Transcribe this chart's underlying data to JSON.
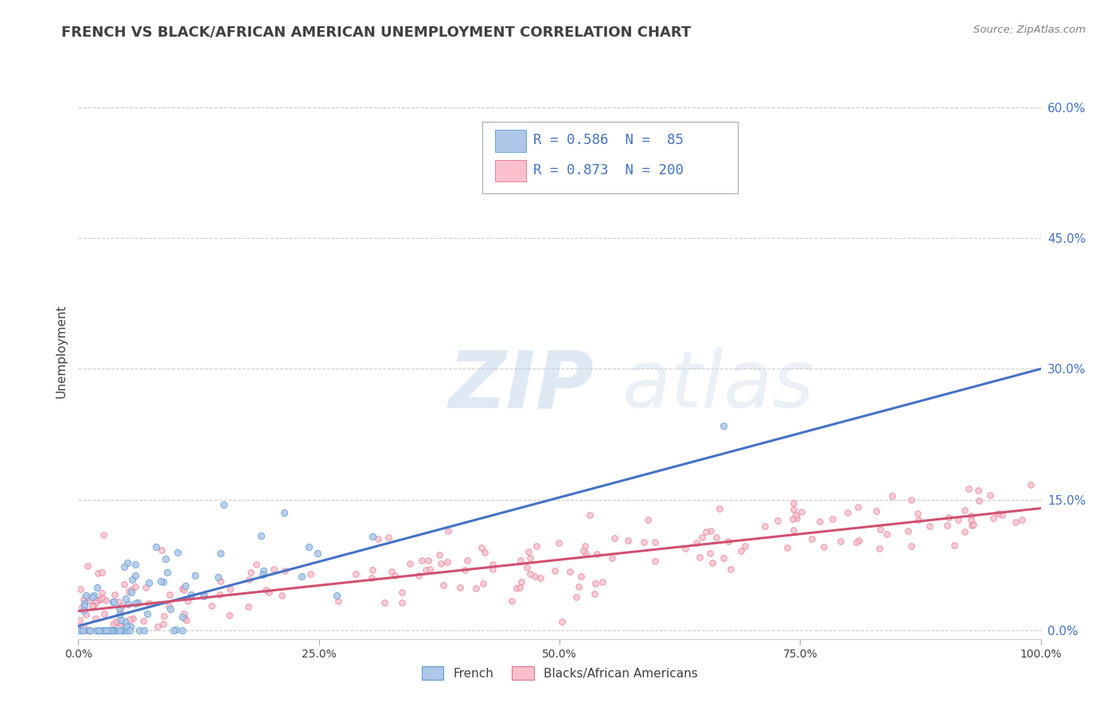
{
  "title": "FRENCH VS BLACK/AFRICAN AMERICAN UNEMPLOYMENT CORRELATION CHART",
  "source_text": "Source: ZipAtlas.com",
  "ylabel": "Unemployment",
  "watermark": "ZIPatlas",
  "legend_french_R": "0.586",
  "legend_french_N": "85",
  "legend_black_R": "0.873",
  "legend_black_N": "200",
  "french_color": "#aec6e8",
  "french_edge_color": "#5b9bd5",
  "french_line_color": "#4472c4",
  "black_color": "#f9c0cb",
  "black_edge_color": "#e07090",
  "black_line_color": "#d05070",
  "title_color": "#404040",
  "source_color": "#808080",
  "legend_value_color": "#4472c4",
  "xlim": [
    0,
    100
  ],
  "ylim": [
    -1,
    65
  ],
  "ytick_positions": [
    0,
    15,
    30,
    45,
    60
  ],
  "ytick_labels": [
    "0.0%",
    "15.0%",
    "30.0%",
    "45.0%",
    "60.0%"
  ],
  "xtick_positions": [
    0,
    25,
    50,
    75,
    100
  ],
  "xtick_labels": [
    "0.0%",
    "25.0%",
    "50.0%",
    "75.0%",
    "100.0%"
  ],
  "french_line_slope": 0.295,
  "french_line_intercept": 0.5,
  "black_line_slope": 0.118,
  "black_line_intercept": 2.2,
  "background_color": "#ffffff",
  "grid_color": "#cccccc",
  "legend_labels": [
    "French",
    "Blacks/African Americans"
  ]
}
